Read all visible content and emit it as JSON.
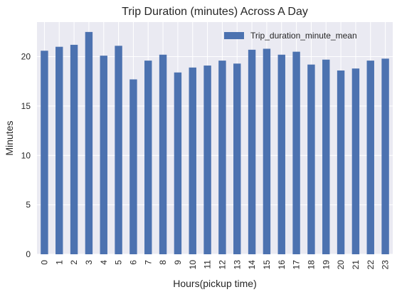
{
  "chart_data": {
    "type": "bar",
    "title": "Trip Duration (minutes) Across A Day",
    "xlabel": "Hours(pickup time)",
    "ylabel": "Minutes",
    "ylim": [
      0,
      23.5
    ],
    "yticks": [
      0,
      5,
      10,
      15,
      20
    ],
    "grid": true,
    "legend_position": "top-right",
    "categories": [
      "0",
      "1",
      "2",
      "3",
      "4",
      "5",
      "6",
      "7",
      "8",
      "9",
      "10",
      "11",
      "12",
      "13",
      "14",
      "15",
      "16",
      "17",
      "18",
      "19",
      "20",
      "21",
      "22",
      "23"
    ],
    "series": [
      {
        "name": "Trip_duration_minute_mean",
        "color": "#4c72b0",
        "values": [
          20.6,
          21.0,
          21.2,
          22.5,
          20.1,
          21.1,
          17.7,
          19.6,
          20.2,
          18.4,
          18.9,
          19.1,
          19.6,
          19.3,
          20.7,
          20.8,
          20.2,
          20.5,
          19.2,
          19.7,
          18.6,
          18.8,
          19.6,
          19.8
        ]
      }
    ]
  }
}
